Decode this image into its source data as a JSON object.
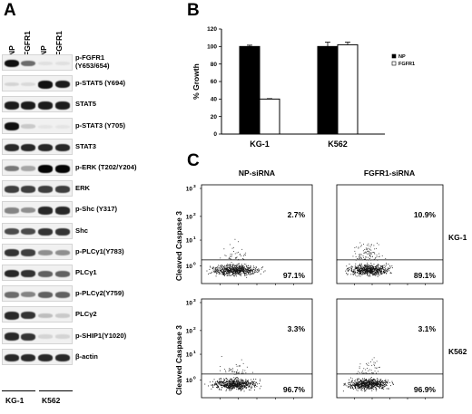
{
  "panels": {
    "a": "A",
    "b": "B",
    "c": "C"
  },
  "panel_a": {
    "columns": [
      "NP",
      "FGFR1",
      "NP",
      "FGFR1"
    ],
    "rows": [
      {
        "label": "p-FGFR1",
        "label2": "(Y653/654)",
        "bands": [
          0.95,
          0.55,
          0.05,
          0.05
        ]
      },
      {
        "label": "p-STAT5 (Y694)",
        "label2": "",
        "bands": [
          0.1,
          0.08,
          0.95,
          0.9
        ]
      },
      {
        "label": "STAT5",
        "label2": "",
        "bands": [
          0.9,
          0.9,
          0.9,
          0.9
        ]
      },
      {
        "label": "p-STAT3 (Y705)",
        "label2": "",
        "bands": [
          0.95,
          0.15,
          0.03,
          0.03
        ]
      },
      {
        "label": "STAT3",
        "label2": "",
        "bands": [
          0.85,
          0.85,
          0.85,
          0.85
        ]
      },
      {
        "label": "p-ERK (T202/Y204)",
        "label2": "",
        "bands": [
          0.5,
          0.3,
          1.0,
          1.0
        ]
      },
      {
        "label": "ERK",
        "label2": "",
        "bands": [
          0.75,
          0.75,
          0.75,
          0.75
        ]
      },
      {
        "label": "p-Shc (Y317)",
        "label2": "",
        "bands": [
          0.45,
          0.4,
          0.85,
          0.85
        ]
      },
      {
        "label": "Shc",
        "label2": "",
        "bands": [
          0.7,
          0.7,
          0.8,
          0.8
        ]
      },
      {
        "label": "p-PLCγ1(Y783)",
        "label2": "",
        "bands": [
          0.8,
          0.75,
          0.4,
          0.4
        ]
      },
      {
        "label": "PLCγ1",
        "label2": "",
        "bands": [
          0.85,
          0.8,
          0.6,
          0.6
        ]
      },
      {
        "label": "p-PLCγ2(Y759)",
        "label2": "",
        "bands": [
          0.55,
          0.45,
          0.6,
          0.6
        ]
      },
      {
        "label": "PLCγ2",
        "label2": "",
        "bands": [
          0.85,
          0.8,
          0.2,
          0.15
        ]
      },
      {
        "label": "p-SHIP1(Y1020)",
        "label2": "",
        "bands": [
          0.85,
          0.8,
          0.1,
          0.1
        ]
      },
      {
        "label": "β-actin",
        "label2": "",
        "bands": [
          0.85,
          0.85,
          0.85,
          0.85
        ]
      }
    ],
    "cell_lines": [
      "KG-1",
      "K562"
    ]
  },
  "chart_data": {
    "type": "bar",
    "ylabel": "% Growth",
    "ylim": [
      0,
      120
    ],
    "yticks": [
      "0",
      "20",
      "40",
      "60",
      "80",
      "100",
      "120"
    ],
    "categories": [
      "KG-1",
      "K562"
    ],
    "series": [
      {
        "name": "NP",
        "values": [
          100,
          100
        ],
        "errors": [
          1.5,
          5
        ],
        "color": "#000000"
      },
      {
        "name": "FGFR1",
        "values": [
          40,
          102
        ],
        "errors": [
          0.5,
          3
        ],
        "color": "#ffffff"
      }
    ],
    "legend": "right"
  },
  "panel_c": {
    "columns": [
      "NP-siRNA",
      "FGFR1-siRNA"
    ],
    "ylabel": "Cleaved Caspase 3",
    "rows": [
      {
        "cell_line": "KG-1",
        "upper": [
          "2.7%",
          "10.9%"
        ],
        "lower": [
          "97.1%",
          "89.1%"
        ]
      },
      {
        "cell_line": "K562",
        "upper": [
          "3.3%",
          "3.1%"
        ],
        "lower": [
          "96.7%",
          "96.9%"
        ]
      }
    ],
    "yticks": [
      {
        "base": "10",
        "exp": "3"
      },
      {
        "base": "10",
        "exp": "2"
      },
      {
        "base": "10",
        "exp": "1"
      },
      {
        "base": "10",
        "exp": "0"
      }
    ]
  }
}
